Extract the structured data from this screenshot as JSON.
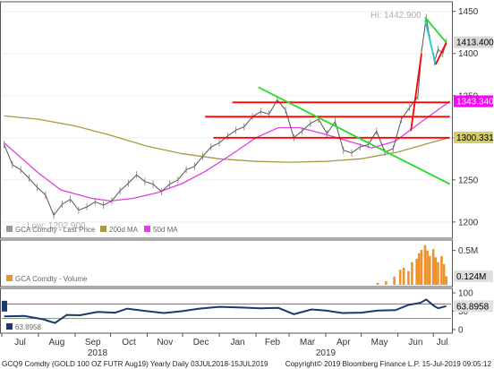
{
  "chart_data": [
    {
      "type": "line",
      "panel": "price",
      "series": [
        {
          "name": "GCA Comdty - Last Price",
          "color": "#999999"
        },
        {
          "name": "200d MA",
          "color": "#a89a40"
        },
        {
          "name": "50d MA",
          "color": "#e040e0"
        }
      ],
      "ylim": [
        1185,
        1455
      ],
      "yticks": [
        1200,
        1250,
        1300,
        1350,
        1400,
        1450
      ],
      "hi_label": "Hi: 1442.900",
      "low_label": "Low: 1202.900",
      "price_points": [
        [
          "2018-07-03",
          1292
        ],
        [
          "2018-07-10",
          1268
        ],
        [
          "2018-07-17",
          1262
        ],
        [
          "2018-07-24",
          1252
        ],
        [
          "2018-07-31",
          1241
        ],
        [
          "2018-08-07",
          1232
        ],
        [
          "2018-08-14",
          1208
        ],
        [
          "2018-08-21",
          1221
        ],
        [
          "2018-08-28",
          1227
        ],
        [
          "2018-09-04",
          1214
        ],
        [
          "2018-09-11",
          1218
        ],
        [
          "2018-09-18",
          1224
        ],
        [
          "2018-09-25",
          1220
        ],
        [
          "2018-10-02",
          1225
        ],
        [
          "2018-10-09",
          1237
        ],
        [
          "2018-10-16",
          1246
        ],
        [
          "2018-10-23",
          1256
        ],
        [
          "2018-10-30",
          1248
        ],
        [
          "2018-11-06",
          1245
        ],
        [
          "2018-11-13",
          1236
        ],
        [
          "2018-11-20",
          1245
        ],
        [
          "2018-11-27",
          1250
        ],
        [
          "2018-12-04",
          1262
        ],
        [
          "2018-12-11",
          1266
        ],
        [
          "2018-12-18",
          1278
        ],
        [
          "2018-12-25",
          1289
        ],
        [
          "2019-01-01",
          1294
        ],
        [
          "2019-01-08",
          1302
        ],
        [
          "2019-01-15",
          1309
        ],
        [
          "2019-01-22",
          1313
        ],
        [
          "2019-01-29",
          1325
        ],
        [
          "2019-02-05",
          1331
        ],
        [
          "2019-02-12",
          1328
        ],
        [
          "2019-02-19",
          1345
        ],
        [
          "2019-02-26",
          1333
        ],
        [
          "2019-03-05",
          1300
        ],
        [
          "2019-03-12",
          1308
        ],
        [
          "2019-03-19",
          1317
        ],
        [
          "2019-03-26",
          1322
        ],
        [
          "2019-04-02",
          1305
        ],
        [
          "2019-04-09",
          1319
        ],
        [
          "2019-04-16",
          1285
        ],
        [
          "2019-04-23",
          1282
        ],
        [
          "2019-04-30",
          1289
        ],
        [
          "2019-05-07",
          1292
        ],
        [
          "2019-05-14",
          1308
        ],
        [
          "2019-05-21",
          1283
        ],
        [
          "2019-05-28",
          1287
        ],
        [
          "2019-06-04",
          1322
        ],
        [
          "2019-06-11",
          1336
        ],
        [
          "2019-06-18",
          1349
        ],
        [
          "2019-06-21",
          1402
        ],
        [
          "2019-06-25",
          1442.9
        ],
        [
          "2019-06-28",
          1418
        ],
        [
          "2019-07-02",
          1390
        ],
        [
          "2019-07-05",
          1405
        ],
        [
          "2019-07-09",
          1400
        ],
        [
          "2019-07-12",
          1413.4
        ]
      ],
      "ma200_points": [
        [
          "2018-07-03",
          1326
        ],
        [
          "2018-08-01",
          1322
        ],
        [
          "2018-09-01",
          1314
        ],
        [
          "2018-10-01",
          1303
        ],
        [
          "2018-11-01",
          1290
        ],
        [
          "2018-12-01",
          1281
        ],
        [
          "2019-01-01",
          1275
        ],
        [
          "2019-02-01",
          1272
        ],
        [
          "2019-03-01",
          1271
        ],
        [
          "2019-04-01",
          1272
        ],
        [
          "2019-05-01",
          1275
        ],
        [
          "2019-06-01",
          1283
        ],
        [
          "2019-07-01",
          1295
        ],
        [
          "2019-07-15",
          1300.331
        ]
      ],
      "ma50_points": [
        [
          "2018-07-03",
          1294
        ],
        [
          "2018-08-01",
          1258
        ],
        [
          "2018-08-20",
          1238
        ],
        [
          "2018-09-15",
          1228
        ],
        [
          "2018-10-01",
          1225
        ],
        [
          "2018-10-20",
          1228
        ],
        [
          "2018-11-10",
          1235
        ],
        [
          "2018-12-01",
          1246
        ],
        [
          "2018-12-20",
          1260
        ],
        [
          "2019-01-10",
          1279
        ],
        [
          "2019-02-01",
          1300
        ],
        [
          "2019-02-20",
          1312
        ],
        [
          "2019-03-10",
          1312
        ],
        [
          "2019-04-01",
          1304
        ],
        [
          "2019-04-20",
          1296
        ],
        [
          "2019-05-10",
          1288
        ],
        [
          "2019-05-30",
          1296
        ],
        [
          "2019-06-20",
          1318
        ],
        [
          "2019-07-15",
          1343.34
        ]
      ],
      "price_labels": [
        {
          "text": "1413.400",
          "value": 1413.4,
          "bg": "#d8d8d8",
          "fg": "#000000"
        },
        {
          "text": "1343.340",
          "value": 1343.34,
          "bg": "#ff00ff",
          "fg": "#ffffff"
        },
        {
          "text": "1300.331",
          "value": 1300.331,
          "bg": "#d4cc66",
          "fg": "#000000"
        }
      ],
      "annotations": [
        {
          "kind": "hline",
          "color": "#ff0000",
          "y": 1342,
          "x0": "2019-01-12",
          "x1": "2019-07-15"
        },
        {
          "kind": "hline",
          "color": "#ff0000",
          "y": 1325,
          "x0": "2018-12-20",
          "x1": "2019-07-15"
        },
        {
          "kind": "hline",
          "color": "#ff0000",
          "y": 1300,
          "x0": "2018-12-27",
          "x1": "2019-07-15"
        },
        {
          "kind": "trend",
          "color": "#22dd22",
          "x0": "2019-02-03",
          "y0": 1360,
          "x1": "2019-07-15",
          "y1": 1245
        },
        {
          "kind": "trend",
          "color": "#ff0000",
          "x0": "2019-06-12",
          "y0": 1308,
          "x1": "2019-06-21",
          "y1": 1400
        },
        {
          "kind": "trend",
          "color": "#22dd22",
          "x0": "2019-06-24",
          "y0": 1443,
          "x1": "2019-07-12",
          "y1": 1413
        },
        {
          "kind": "trend",
          "color": "#22cccc",
          "x0": "2019-06-24",
          "y0": 1440,
          "x1": "2019-07-03",
          "y1": 1387
        },
        {
          "kind": "trend",
          "color": "#ff0000",
          "x0": "2019-07-03",
          "y0": 1387,
          "x1": "2019-07-12",
          "y1": 1413
        }
      ]
    },
    {
      "type": "bar",
      "panel": "volume",
      "series": [
        {
          "name": "GCA Comdty - Volume",
          "color": "#f0922b"
        }
      ],
      "ylim": [
        0,
        0.6
      ],
      "yticks": [
        {
          "value": 0.5,
          "label": "0.5M"
        }
      ],
      "last_label": {
        "text": "0.124M",
        "value": 0.124
      },
      "volume_points": [
        [
          "2019-05-15",
          0.03
        ],
        [
          "2019-05-22",
          0.05
        ],
        [
          "2019-05-29",
          0.12
        ],
        [
          "2019-06-03",
          0.22
        ],
        [
          "2019-06-06",
          0.25
        ],
        [
          "2019-06-10",
          0.2
        ],
        [
          "2019-06-13",
          0.33
        ],
        [
          "2019-06-17",
          0.38
        ],
        [
          "2019-06-19",
          0.46
        ],
        [
          "2019-06-21",
          0.51
        ],
        [
          "2019-06-24",
          0.58
        ],
        [
          "2019-06-26",
          0.5
        ],
        [
          "2019-06-28",
          0.42
        ],
        [
          "2019-07-01",
          0.52
        ],
        [
          "2019-07-03",
          0.4
        ],
        [
          "2019-07-05",
          0.33
        ],
        [
          "2019-07-08",
          0.42
        ],
        [
          "2019-07-10",
          0.3
        ],
        [
          "2019-07-12",
          0.124
        ]
      ]
    },
    {
      "type": "line",
      "panel": "rsi",
      "series": [
        {
          "name": "RSI",
          "color": "#1a3a6e"
        }
      ],
      "legend_value": "63.8958",
      "last_label": {
        "text": "63.8958",
        "value": 63.8958
      },
      "ylim": [
        -5,
        105
      ],
      "yticks": [
        0,
        50,
        100
      ],
      "overbought": 70,
      "oversold": 30,
      "rsi_points": [
        [
          "2018-07-03",
          36
        ],
        [
          "2018-07-20",
          37
        ],
        [
          "2018-08-05",
          28
        ],
        [
          "2018-08-15",
          18
        ],
        [
          "2018-08-25",
          40
        ],
        [
          "2018-09-05",
          39
        ],
        [
          "2018-09-20",
          48
        ],
        [
          "2018-10-05",
          46
        ],
        [
          "2018-10-15",
          57
        ],
        [
          "2018-10-30",
          51
        ],
        [
          "2018-11-15",
          45
        ],
        [
          "2018-11-30",
          50
        ],
        [
          "2018-12-15",
          57
        ],
        [
          "2019-01-01",
          62
        ],
        [
          "2019-01-20",
          60
        ],
        [
          "2019-02-05",
          58
        ],
        [
          "2019-02-20",
          59
        ],
        [
          "2019-03-05",
          42
        ],
        [
          "2019-03-20",
          55
        ],
        [
          "2019-04-01",
          52
        ],
        [
          "2019-04-15",
          45
        ],
        [
          "2019-05-01",
          46
        ],
        [
          "2019-05-15",
          52
        ],
        [
          "2019-05-30",
          53
        ],
        [
          "2019-06-10",
          67
        ],
        [
          "2019-06-20",
          73
        ],
        [
          "2019-06-25",
          82
        ],
        [
          "2019-07-01",
          66
        ],
        [
          "2019-07-05",
          58
        ],
        [
          "2019-07-12",
          63.8958
        ]
      ]
    }
  ],
  "x_axis": {
    "range": [
      "2018-07-01",
      "2019-07-16"
    ],
    "months": [
      {
        "label": "Jul",
        "date": "2018-07-01"
      },
      {
        "label": "Aug",
        "date": "2018-08-01"
      },
      {
        "label": "Sep",
        "date": "2018-09-01"
      },
      {
        "label": "Oct",
        "date": "2018-10-01"
      },
      {
        "label": "Nov",
        "date": "2018-11-01"
      },
      {
        "label": "Dec",
        "date": "2018-12-01"
      },
      {
        "label": "Jan",
        "date": "2019-01-01"
      },
      {
        "label": "Feb",
        "date": "2019-02-01"
      },
      {
        "label": "Mar",
        "date": "2019-03-01"
      },
      {
        "label": "Apr",
        "date": "2019-04-01"
      },
      {
        "label": "May",
        "date": "2019-05-01"
      },
      {
        "label": "Jun",
        "date": "2019-06-01"
      },
      {
        "label": "Jul",
        "date": "2019-07-01"
      }
    ],
    "years": [
      {
        "label": "2018",
        "date": "2018-09-20"
      },
      {
        "label": "2019",
        "date": "2019-04-01"
      }
    ]
  },
  "footer": {
    "left": "GCQ9 Comdty (GOLD 100 OZ FUTR  Aug19) Yearly  Daily 03JUL2018-15JUL2019",
    "right": "Copyright© 2019 Bloomberg Finance L.P.   15-Jul-2019 09:05:12"
  }
}
